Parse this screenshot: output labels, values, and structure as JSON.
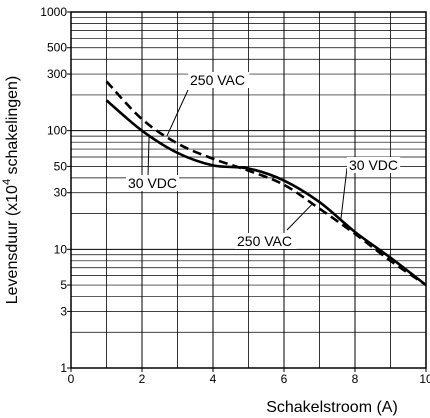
{
  "chart_data": {
    "type": "line",
    "xlabel": "Schakelstroom (A)",
    "ylabel": "Levensduur (x10",
    "ylabel_exponent": "4",
    "ylabel_suffix": " schakelingen)",
    "x_scale": "linear",
    "y_scale": "log",
    "xlim": [
      0,
      10
    ],
    "ylim": [
      1,
      1000
    ],
    "x_ticks": [
      0,
      2,
      4,
      6,
      8,
      10
    ],
    "y_ticks": [
      1,
      3,
      5,
      10,
      30,
      50,
      100,
      300,
      500,
      1000
    ],
    "grid": true,
    "series": [
      {
        "name": "30 VDC",
        "style": "solid",
        "color": "#000000",
        "x": [
          1,
          2,
          3,
          4,
          5,
          6,
          7,
          8,
          9,
          10
        ],
        "y": [
          180,
          100,
          65,
          51,
          48,
          38,
          25,
          14,
          8.5,
          5
        ]
      },
      {
        "name": "250 VAC",
        "style": "dashed",
        "color": "#000000",
        "x": [
          1,
          2,
          3,
          4,
          5,
          6,
          7,
          8,
          9,
          10
        ],
        "y": [
          260,
          125,
          78,
          58,
          46,
          35,
          22,
          13.5,
          8,
          5
        ]
      }
    ],
    "annotations": [
      {
        "text": "250 VAC",
        "series": "250 VAC",
        "pointer_x": 2.7
      },
      {
        "text": "30 VDC",
        "series": "30 VDC",
        "pointer_x": 2.2
      },
      {
        "text": "30 VDC",
        "series": "30 VDC",
        "pointer_x": 7.6
      },
      {
        "text": "250 VAC",
        "series": "250 VAC",
        "pointer_x": 6.8
      }
    ]
  }
}
